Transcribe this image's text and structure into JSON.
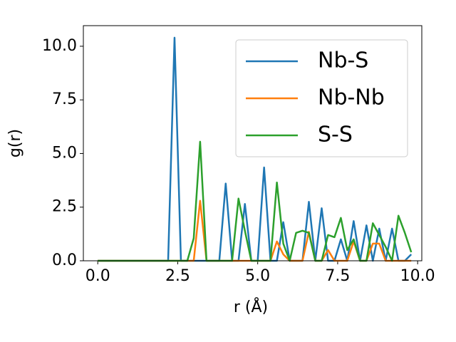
{
  "chart_data": {
    "type": "line",
    "x": [
      0,
      0.2,
      0.4,
      0.6,
      0.8,
      1,
      1.2,
      1.4,
      1.6,
      1.8,
      2,
      2.2,
      2.4,
      2.6,
      2.8,
      3,
      3.2,
      3.4,
      3.6,
      3.8,
      4,
      4.2,
      4.4,
      4.6,
      4.8,
      5,
      5.2,
      5.4,
      5.6,
      5.8,
      6,
      6.2,
      6.4,
      6.6,
      6.8,
      7,
      7.2,
      7.4,
      7.6,
      7.8,
      8,
      8.2,
      8.4,
      8.6,
      8.8,
      9,
      9.2,
      9.4,
      9.6,
      9.8
    ],
    "series": [
      {
        "name": "Nb-S",
        "color": "#1f77b4",
        "values": [
          0,
          0,
          0,
          0,
          0,
          0,
          0,
          0,
          0,
          0,
          0,
          0,
          10.4,
          0,
          0,
          0,
          0,
          0,
          0,
          0,
          3.6,
          0,
          0,
          2.65,
          0,
          0,
          4.35,
          0,
          0,
          1.8,
          0,
          0,
          0,
          2.75,
          0,
          2.45,
          0,
          0,
          1.0,
          0,
          1.85,
          0,
          1.65,
          0,
          1.5,
          0,
          1.5,
          0,
          0,
          0.3
        ]
      },
      {
        "name": "Nb-Nb",
        "color": "#ff7f0e",
        "values": [
          0,
          0,
          0,
          0,
          0,
          0,
          0,
          0,
          0,
          0,
          0,
          0,
          0,
          0,
          0,
          0,
          2.8,
          0,
          0,
          0,
          0,
          0,
          0,
          0,
          0,
          0,
          0,
          0,
          0.9,
          0.3,
          0,
          0,
          0,
          1.35,
          0,
          0,
          0.5,
          0,
          0,
          0,
          0.9,
          0,
          0,
          0.8,
          0.8,
          0,
          0,
          0,
          0,
          0
        ]
      },
      {
        "name": "S-S",
        "color": "#2ca02c",
        "values": [
          0,
          0,
          0,
          0,
          0,
          0,
          0,
          0,
          0,
          0,
          0,
          0,
          0,
          0,
          0,
          1.05,
          5.55,
          0,
          0,
          0,
          0,
          0,
          2.9,
          1.4,
          0,
          0,
          0,
          0,
          3.65,
          0.8,
          0,
          1.3,
          1.4,
          1.3,
          0,
          0,
          1.2,
          1.1,
          2.0,
          0.5,
          1.0,
          0,
          0,
          1.75,
          1.2,
          0.65,
          0,
          2.1,
          1.3,
          0.4
        ]
      }
    ],
    "x_label": "r (Å)",
    "y_label": "g(r)",
    "xlim": [
      -0.45,
      10.13
    ],
    "ylim": [
      0,
      10.96
    ],
    "xticks": [
      {
        "value": 0,
        "label": "0.0"
      },
      {
        "value": 2.5,
        "label": "2.5"
      },
      {
        "value": 5,
        "label": "5.0"
      },
      {
        "value": 7.5,
        "label": "7.5"
      },
      {
        "value": 10,
        "label": "10.0"
      }
    ],
    "yticks": [
      {
        "value": 0,
        "label": "0.0"
      },
      {
        "value": 2.5,
        "label": "2.5"
      },
      {
        "value": 5,
        "label": "5.0"
      },
      {
        "value": 7.5,
        "label": "7.5"
      },
      {
        "value": 10,
        "label": "10.0"
      }
    ],
    "legend": "upper right"
  }
}
